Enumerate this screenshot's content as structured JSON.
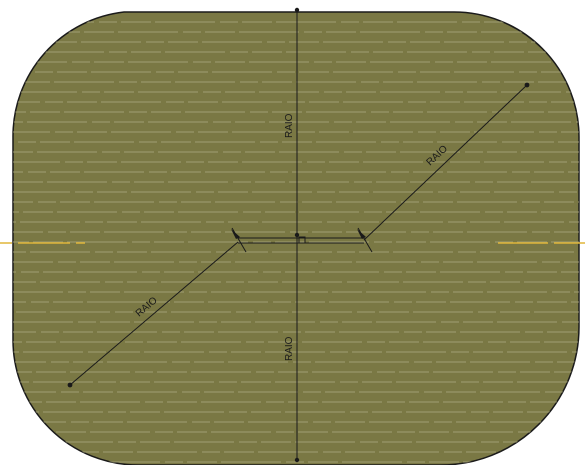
{
  "drawing": {
    "labels": {
      "radius_top": "RAIO",
      "radius_bottom": "RAIO",
      "radius_diagonal_right": "RAIO",
      "radius_diagonal_left": "RAIO"
    },
    "colors": {
      "fill": "#7a7844",
      "outline": "#1a1a1a",
      "hatch": "#a7a57c",
      "centerline": "#e0b53a",
      "background": "#ffffff"
    }
  }
}
